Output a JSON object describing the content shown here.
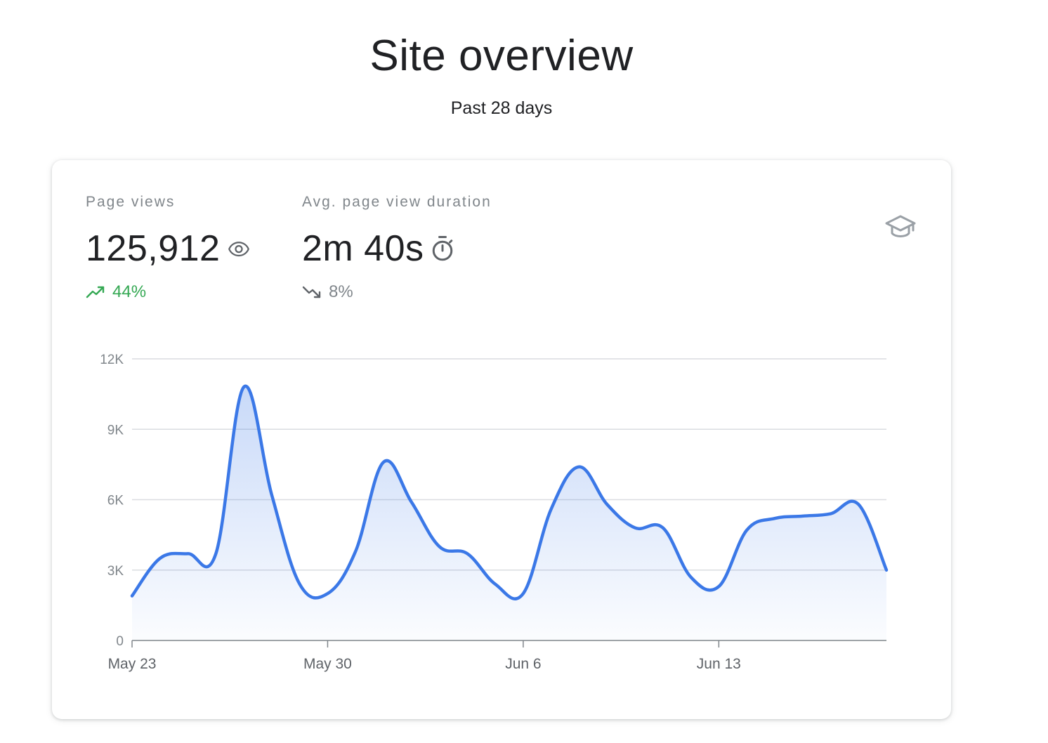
{
  "header": {
    "title": "Site overview",
    "subtitle": "Past 28 days"
  },
  "metrics": [
    {
      "label": "Page views",
      "value": "125,912",
      "icon": "eye-icon",
      "change": "44%",
      "trend": "up",
      "trend_icon": "trending-up-icon",
      "change_color": "#34a853"
    },
    {
      "label": "Avg. page view duration",
      "value": "2m 40s",
      "icon": "timer-icon",
      "change": "8%",
      "trend": "down",
      "trend_icon": "trending-down-icon",
      "change_color": "#80868b"
    }
  ],
  "card_action_icon": "graduation-cap-icon",
  "chart_data": {
    "type": "area",
    "title": "",
    "xlabel": "",
    "ylabel": "",
    "x": [
      "May 23",
      "May 24",
      "May 25",
      "May 26",
      "May 27",
      "May 28",
      "May 29",
      "May 30",
      "May 31",
      "Jun 1",
      "Jun 2",
      "Jun 3",
      "Jun 4",
      "Jun 5",
      "Jun 6",
      "Jun 7",
      "Jun 8",
      "Jun 9",
      "Jun 10",
      "Jun 11",
      "Jun 12",
      "Jun 13",
      "Jun 14",
      "Jun 15",
      "Jun 16",
      "Jun 17",
      "Jun 18",
      "Jun 19"
    ],
    "series": [
      {
        "values": [
          1900,
          3500,
          3700,
          3700,
          10800,
          6200,
          2400,
          2000,
          3800,
          7600,
          5900,
          4000,
          3700,
          2400,
          2000,
          5600,
          7400,
          5800,
          4800,
          4800,
          2700,
          2300,
          4700,
          5200,
          5300,
          5400,
          5800,
          3000
        ],
        "color": "#3b78e7"
      }
    ],
    "y_ticks": [
      "0",
      "3K",
      "6K",
      "9K",
      "12K"
    ],
    "y_tick_values": [
      0,
      3000,
      6000,
      9000,
      12000
    ],
    "x_tick_labels": [
      "May 23",
      "May 30",
      "Jun 6",
      "Jun 13"
    ],
    "x_tick_indices": [
      0,
      7,
      14,
      21
    ],
    "ylim": [
      0,
      12000
    ],
    "grid": true,
    "legend": "none"
  }
}
